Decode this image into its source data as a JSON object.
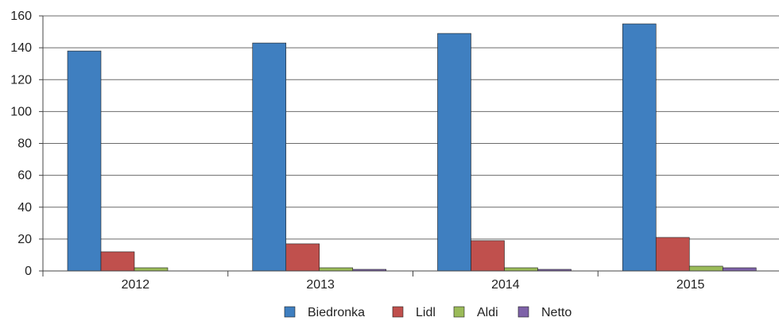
{
  "chart_data": {
    "type": "bar",
    "title": "",
    "xlabel": "",
    "ylabel": "",
    "categories": [
      "2012",
      "2013",
      "2014",
      "2015"
    ],
    "ylim": [
      0,
      160
    ],
    "yticks": [
      0,
      20,
      40,
      60,
      80,
      100,
      120,
      140,
      160
    ],
    "grid": true,
    "legend_position": "bottom",
    "series": [
      {
        "name": "Biedronka",
        "color": "#3f7fc0",
        "values": [
          138,
          143,
          149,
          155
        ]
      },
      {
        "name": "Lidl",
        "color": "#c0504d",
        "values": [
          12,
          17,
          19,
          21
        ]
      },
      {
        "name": "Aldi",
        "color": "#9bbb59",
        "values": [
          2,
          2,
          2,
          3
        ]
      },
      {
        "name": "Netto",
        "color": "#7e62a8",
        "values": [
          0,
          1,
          1,
          2
        ]
      }
    ]
  }
}
